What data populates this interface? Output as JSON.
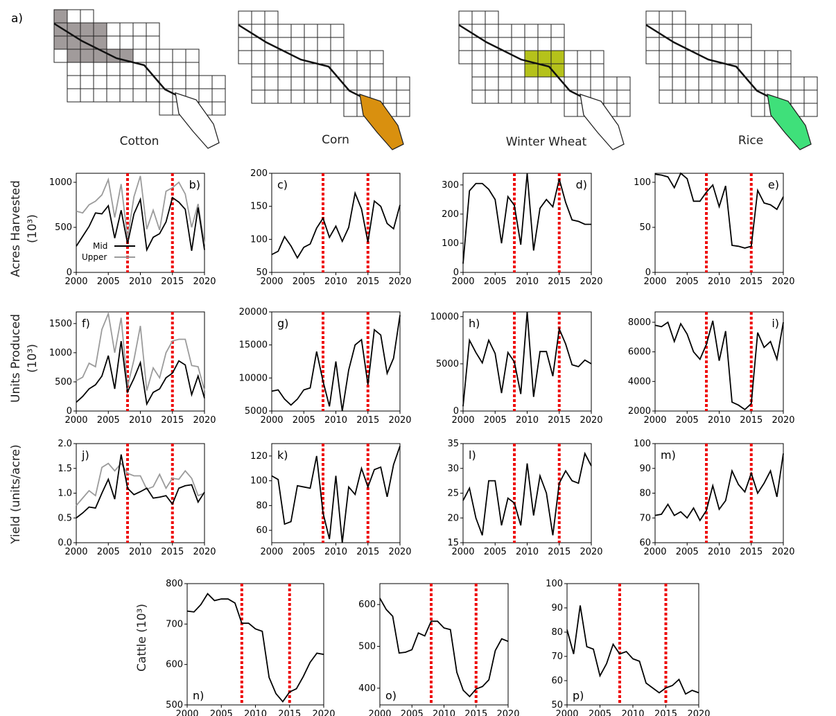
{
  "panel_a_label": "a)",
  "crops": [
    {
      "name": "Cotton",
      "highlight_color": "#a19b9b"
    },
    {
      "name": "Corn",
      "highlight_color": "#d9900f"
    },
    {
      "name": "Winter Wheat",
      "highlight_color": "#b5c21b"
    },
    {
      "name": "Rice",
      "highlight_color": "#3fe07a"
    }
  ],
  "row_labels": {
    "acres": "Acres Harvested",
    "acres_unit": "(10³)",
    "units": "Units Produced",
    "units_unit": "(10³)",
    "yield": "Yield (units/acre)",
    "cattle": "Cattle (10³)"
  },
  "legend": {
    "mid": "Mid",
    "upper": "Upper"
  },
  "event_years": [
    2008,
    2015
  ],
  "colors": {
    "mid": "#000000",
    "upper": "#9b9b9b",
    "event": "#ee0000"
  },
  "chart_data": [
    {
      "id": "b",
      "type": "line",
      "label": "b)",
      "ylim": [
        0,
        1100
      ],
      "yticks": [
        0,
        500,
        1000
      ],
      "xticks": [
        2000,
        2005,
        2010,
        2015,
        2020
      ],
      "x": [
        2000,
        2001,
        2002,
        2003,
        2004,
        2005,
        2006,
        2007,
        2008,
        2009,
        2010,
        2011,
        2012,
        2013,
        2014,
        2015,
        2016,
        2017,
        2018,
        2019,
        2020
      ],
      "series": [
        {
          "name": "Mid",
          "values": [
            290,
            400,
            510,
            660,
            650,
            740,
            380,
            690,
            320,
            650,
            810,
            250,
            390,
            430,
            560,
            830,
            780,
            700,
            240,
            720,
            250
          ]
        },
        {
          "name": "Upper",
          "values": [
            680,
            660,
            750,
            790,
            860,
            1030,
            610,
            980,
            380,
            840,
            1070,
            480,
            690,
            470,
            900,
            940,
            1000,
            870,
            500,
            760,
            310
          ]
        }
      ]
    },
    {
      "id": "c",
      "type": "line",
      "label": "c)",
      "ylim": [
        50,
        200
      ],
      "yticks": [
        50,
        100,
        150,
        200
      ],
      "xticks": [
        2000,
        2005,
        2010,
        2015,
        2020
      ],
      "x": [
        2000,
        2001,
        2002,
        2003,
        2004,
        2005,
        2006,
        2007,
        2008,
        2009,
        2010,
        2011,
        2012,
        2013,
        2014,
        2015,
        2016,
        2017,
        2018,
        2019,
        2020
      ],
      "series": [
        {
          "values": [
            77,
            82,
            104,
            90,
            72,
            88,
            93,
            117,
            132,
            103,
            120,
            97,
            118,
            170,
            146,
            96,
            158,
            150,
            124,
            116,
            152
          ]
        }
      ]
    },
    {
      "id": "d",
      "type": "line",
      "label": "d)",
      "ylim": [
        0,
        340
      ],
      "yticks": [
        0,
        100,
        200,
        300
      ],
      "xticks": [
        2000,
        2005,
        2010,
        2015,
        2020
      ],
      "x": [
        2000,
        2001,
        2002,
        2003,
        2004,
        2005,
        2006,
        2007,
        2008,
        2009,
        2010,
        2011,
        2012,
        2013,
        2014,
        2015,
        2016,
        2017,
        2018,
        2019,
        2020
      ],
      "series": [
        {
          "values": [
            30,
            280,
            305,
            305,
            285,
            250,
            100,
            260,
            230,
            95,
            340,
            75,
            220,
            250,
            225,
            320,
            240,
            180,
            175,
            165,
            165
          ]
        }
      ]
    },
    {
      "id": "e",
      "type": "line",
      "label": "e)",
      "ylim": [
        0,
        110
      ],
      "yticks": [
        0,
        50,
        100
      ],
      "xticks": [
        2000,
        2005,
        2010,
        2015,
        2020
      ],
      "x": [
        2000,
        2001,
        2002,
        2003,
        2004,
        2005,
        2006,
        2007,
        2008,
        2009,
        2010,
        2011,
        2012,
        2013,
        2014,
        2015,
        2016,
        2017,
        2018,
        2019,
        2020
      ],
      "series": [
        {
          "values": [
            109,
            108,
            106,
            94,
            110,
            104,
            79,
            79,
            89,
            97,
            73,
            96,
            30,
            29,
            27,
            29,
            91,
            77,
            75,
            70,
            84
          ]
        }
      ]
    },
    {
      "id": "f",
      "type": "line",
      "label": "f)",
      "ylim": [
        0,
        1700
      ],
      "yticks": [
        0,
        500,
        1000,
        1500
      ],
      "xticks": [
        2000,
        2005,
        2010,
        2015,
        2020
      ],
      "x": [
        2000,
        2001,
        2002,
        2003,
        2004,
        2005,
        2006,
        2007,
        2008,
        2009,
        2010,
        2011,
        2012,
        2013,
        2014,
        2015,
        2016,
        2017,
        2018,
        2019,
        2020
      ],
      "series": [
        {
          "name": "Mid",
          "values": [
            150,
            250,
            380,
            450,
            600,
            950,
            380,
            1200,
            330,
            560,
            830,
            120,
            320,
            380,
            570,
            650,
            860,
            790,
            280,
            600,
            220
          ]
        },
        {
          "name": "Upper",
          "values": [
            520,
            580,
            820,
            760,
            1400,
            1670,
            1000,
            1600,
            420,
            880,
            1460,
            350,
            740,
            570,
            1000,
            1200,
            1230,
            1230,
            780,
            760,
            350
          ]
        }
      ]
    },
    {
      "id": "g",
      "type": "line",
      "label": "g)",
      "ylim": [
        5000,
        20000
      ],
      "yticks": [
        5000,
        10000,
        15000,
        20000
      ],
      "xticks": [
        2000,
        2005,
        2010,
        2015,
        2020
      ],
      "x": [
        2000,
        2001,
        2002,
        2003,
        2004,
        2005,
        2006,
        2007,
        2008,
        2009,
        2010,
        2011,
        2012,
        2013,
        2014,
        2015,
        2016,
        2017,
        2018,
        2019,
        2020
      ],
      "series": [
        {
          "values": [
            8000,
            8200,
            6800,
            5900,
            6800,
            8200,
            8500,
            14000,
            9500,
            5700,
            12500,
            5000,
            11200,
            15000,
            15800,
            9000,
            17300,
            16500,
            10700,
            13000,
            19500
          ]
        }
      ]
    },
    {
      "id": "h",
      "type": "line",
      "label": "h)",
      "ylim": [
        0,
        10500
      ],
      "yticks": [
        0,
        5000,
        10000
      ],
      "xticks": [
        2000,
        2005,
        2010,
        2015,
        2020
      ],
      "x": [
        2000,
        2001,
        2002,
        2003,
        2004,
        2005,
        2006,
        2007,
        2008,
        2009,
        2010,
        2011,
        2012,
        2013,
        2014,
        2015,
        2016,
        2017,
        2018,
        2019,
        2020
      ],
      "series": [
        {
          "values": [
            500,
            7500,
            6200,
            5100,
            7500,
            6100,
            1900,
            6200,
            5200,
            1800,
            10500,
            1500,
            6300,
            6300,
            3700,
            8700,
            7100,
            4900,
            4700,
            5400,
            5000
          ]
        }
      ]
    },
    {
      "id": "i",
      "type": "line",
      "label": "i)",
      "ylim": [
        2000,
        8700
      ],
      "yticks": [
        2000,
        4000,
        6000,
        8000
      ],
      "xticks": [
        2000,
        2005,
        2010,
        2015,
        2020
      ],
      "x": [
        2000,
        2001,
        2002,
        2003,
        2004,
        2005,
        2006,
        2007,
        2008,
        2009,
        2010,
        2011,
        2012,
        2013,
        2014,
        2015,
        2016,
        2017,
        2018,
        2019,
        2020
      ],
      "series": [
        {
          "values": [
            7800,
            7700,
            8000,
            6700,
            7900,
            7200,
            6000,
            5500,
            6500,
            8100,
            5400,
            7400,
            2600,
            2400,
            2100,
            2500,
            7300,
            6300,
            6700,
            5500,
            8000
          ]
        }
      ]
    },
    {
      "id": "j",
      "type": "line",
      "label": "j)",
      "ylim": [
        0,
        2.0
      ],
      "yticks": [
        0.0,
        0.5,
        1.0,
        1.5,
        2.0
      ],
      "xticks": [
        2000,
        2005,
        2010,
        2015,
        2020
      ],
      "x": [
        2000,
        2001,
        2002,
        2003,
        2004,
        2005,
        2006,
        2007,
        2008,
        2009,
        2010,
        2011,
        2012,
        2013,
        2014,
        2015,
        2016,
        2017,
        2018,
        2019,
        2020
      ],
      "series": [
        {
          "name": "Mid",
          "values": [
            0.5,
            0.6,
            0.72,
            0.7,
            1.0,
            1.28,
            0.88,
            1.78,
            1.1,
            0.97,
            1.03,
            1.1,
            0.9,
            0.92,
            0.95,
            0.78,
            1.1,
            1.15,
            1.17,
            0.82,
            1.02
          ]
        },
        {
          "name": "Upper",
          "values": [
            0.75,
            0.9,
            1.05,
            0.95,
            1.52,
            1.6,
            1.45,
            1.6,
            1.4,
            1.35,
            1.35,
            1.08,
            1.13,
            1.38,
            1.1,
            1.3,
            1.28,
            1.45,
            1.3,
            0.95,
            1.0
          ]
        }
      ]
    },
    {
      "id": "k",
      "type": "line",
      "label": "k)",
      "ylim": [
        50,
        130
      ],
      "yticks": [
        60,
        80,
        100,
        120
      ],
      "xticks": [
        2000,
        2005,
        2010,
        2015,
        2020
      ],
      "x": [
        2000,
        2001,
        2002,
        2003,
        2004,
        2005,
        2006,
        2007,
        2008,
        2009,
        2010,
        2011,
        2012,
        2013,
        2014,
        2015,
        2016,
        2017,
        2018,
        2019,
        2020
      ],
      "series": [
        {
          "values": [
            104,
            101,
            65,
            67,
            96,
            95,
            94,
            120,
            74,
            53,
            104,
            48,
            95,
            89,
            110,
            95,
            109,
            111,
            87,
            113,
            128
          ]
        }
      ]
    },
    {
      "id": "l",
      "type": "line",
      "label": "l)",
      "ylim": [
        15,
        35
      ],
      "yticks": [
        15,
        20,
        25,
        30,
        35
      ],
      "xticks": [
        2000,
        2005,
        2010,
        2015,
        2020
      ],
      "x": [
        2000,
        2001,
        2002,
        2003,
        2004,
        2005,
        2006,
        2007,
        2008,
        2009,
        2010,
        2011,
        2012,
        2013,
        2014,
        2015,
        2016,
        2017,
        2018,
        2019,
        2020
      ],
      "series": [
        {
          "values": [
            23.5,
            26,
            20,
            16.5,
            27.5,
            27.5,
            18.5,
            24,
            23,
            18.5,
            31,
            20.5,
            28.5,
            25,
            16.5,
            27,
            29.5,
            27.5,
            27,
            33,
            30.5
          ]
        }
      ]
    },
    {
      "id": "m",
      "type": "line",
      "label": "m)",
      "ylim": [
        60,
        100
      ],
      "yticks": [
        60,
        70,
        80,
        90,
        100
      ],
      "xticks": [
        2000,
        2005,
        2010,
        2015,
        2020
      ],
      "x": [
        2000,
        2001,
        2002,
        2003,
        2004,
        2005,
        2006,
        2007,
        2008,
        2009,
        2010,
        2011,
        2012,
        2013,
        2014,
        2015,
        2016,
        2017,
        2018,
        2019,
        2020
      ],
      "series": [
        {
          "values": [
            71,
            71.5,
            75.5,
            71,
            72.5,
            70,
            74,
            69,
            73,
            83,
            73.5,
            77,
            89,
            83.5,
            80.5,
            88,
            80,
            84,
            89,
            78.5,
            96
          ]
        }
      ]
    },
    {
      "id": "n",
      "type": "line",
      "label": "n)",
      "ylim": [
        500,
        800
      ],
      "yticks": [
        500,
        600,
        700,
        800
      ],
      "xticks": [
        2000,
        2005,
        2010,
        2015,
        2020
      ],
      "x": [
        2000,
        2001,
        2002,
        2003,
        2004,
        2005,
        2006,
        2007,
        2008,
        2009,
        2010,
        2011,
        2012,
        2013,
        2014,
        2015,
        2016,
        2017,
        2018,
        2019,
        2020
      ],
      "series": [
        {
          "values": [
            732,
            730,
            748,
            775,
            758,
            762,
            762,
            752,
            702,
            702,
            688,
            682,
            568,
            528,
            508,
            532,
            540,
            570,
            605,
            628,
            625
          ]
        }
      ]
    },
    {
      "id": "o",
      "type": "line",
      "label": "o)",
      "ylim": [
        360,
        650
      ],
      "yticks": [
        400,
        500,
        600
      ],
      "xticks": [
        2000,
        2005,
        2010,
        2015,
        2020
      ],
      "x": [
        2000,
        2001,
        2002,
        2003,
        2004,
        2005,
        2006,
        2007,
        2008,
        2009,
        2010,
        2011,
        2012,
        2013,
        2014,
        2015,
        2016,
        2017,
        2018,
        2019,
        2020
      ],
      "series": [
        {
          "values": [
            615,
            588,
            572,
            484,
            486,
            492,
            532,
            525,
            560,
            560,
            544,
            540,
            438,
            395,
            380,
            398,
            404,
            420,
            490,
            518,
            512
          ]
        }
      ]
    },
    {
      "id": "p",
      "type": "line",
      "label": "p)",
      "ylim": [
        50,
        100
      ],
      "yticks": [
        50,
        60,
        70,
        80,
        90,
        100
      ],
      "xticks": [
        2000,
        2005,
        2010,
        2015,
        2020
      ],
      "x": [
        2000,
        2001,
        2002,
        2003,
        2004,
        2005,
        2006,
        2007,
        2008,
        2009,
        2010,
        2011,
        2012,
        2013,
        2014,
        2015,
        2016,
        2017,
        2018,
        2019,
        2020
      ],
      "series": [
        {
          "values": [
            81,
            71,
            91,
            74,
            73,
            62,
            67,
            75,
            71,
            72,
            69,
            68,
            59,
            57,
            55,
            57,
            58,
            60.5,
            54.5,
            56,
            55
          ]
        }
      ]
    }
  ]
}
